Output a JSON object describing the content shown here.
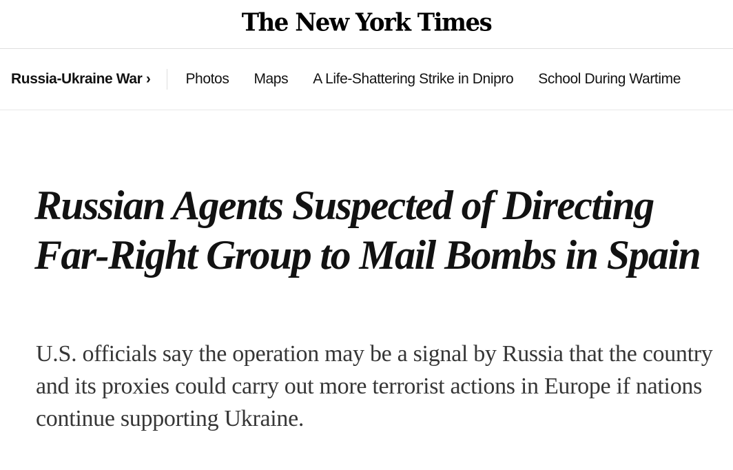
{
  "masthead": {
    "logo": "The New York Times"
  },
  "nav": {
    "section": "Russia-Ukraine War ›",
    "links": [
      "Photos",
      "Maps",
      "A Life-Shattering Strike in Dnipro",
      "School During Wartime"
    ]
  },
  "article": {
    "headline": "Russian Agents Suspected of Directing Far-Right Group to Mail Bombs in Spain",
    "summary": "U.S. officials say the operation may be a signal by Russia that the country and its proxies could carry out more terrorist actions in Europe if nations continue supporting Ukraine."
  }
}
